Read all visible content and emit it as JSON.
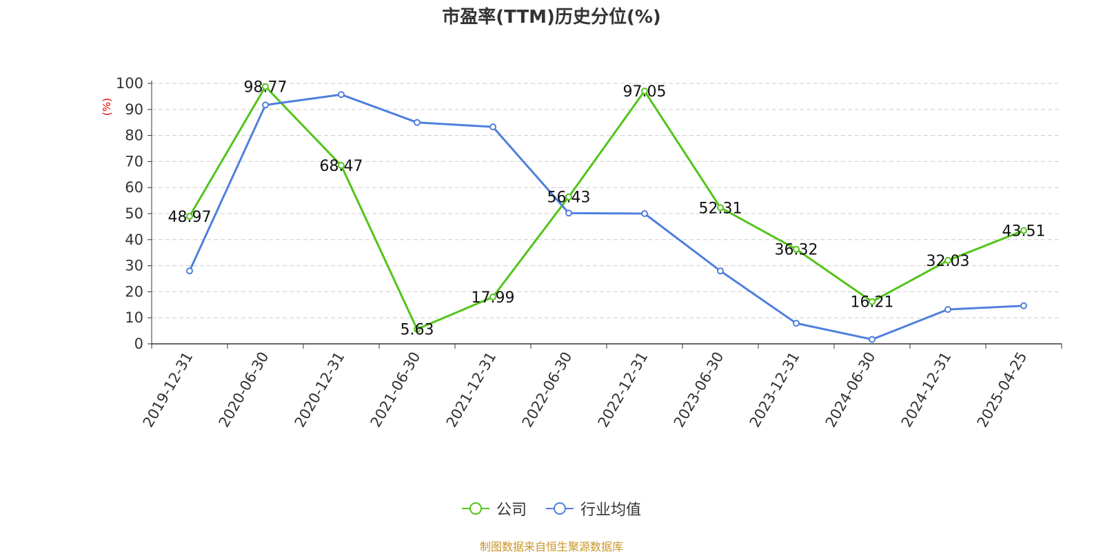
{
  "chart_data": {
    "type": "line",
    "title": "市盈率(TTM)历史分位(%)",
    "ylabel": "(%)",
    "xlabel": "",
    "categories": [
      "2019-12-31",
      "2020-06-30",
      "2020-12-31",
      "2021-06-30",
      "2021-12-31",
      "2022-06-30",
      "2022-12-31",
      "2023-06-30",
      "2023-12-31",
      "2024-06-30",
      "2024-12-31",
      "2025-04-25"
    ],
    "ylim": [
      0,
      100
    ],
    "yticks": [
      0,
      10,
      20,
      30,
      40,
      50,
      60,
      70,
      80,
      90,
      100
    ],
    "grid": true,
    "legend_position": "bottom",
    "series": [
      {
        "name": "公司",
        "color": "#52c41a",
        "show_labels": true,
        "values": [
          48.97,
          98.77,
          68.47,
          5.63,
          17.99,
          56.43,
          97.05,
          52.31,
          36.32,
          16.21,
          32.03,
          43.51
        ],
        "labels": [
          "48.97",
          "98.77",
          "68.47",
          "5.63",
          "17.99",
          "56.43",
          "97.05",
          "52.31",
          "36.32",
          "16.21",
          "32.03",
          "43.51"
        ]
      },
      {
        "name": "行业均值",
        "color": "#4e7fdc",
        "show_labels": false,
        "values": [
          28.0,
          91.7,
          95.7,
          85.0,
          83.3,
          50.2,
          50.0,
          28.0,
          7.9,
          1.7,
          13.2,
          14.6
        ]
      }
    ]
  },
  "source_note": "制图数据来自恒生聚源数据库",
  "colors": {
    "ylabel": "#e00000",
    "source_note": "#c8962a",
    "grid": "#cccccc",
    "axis": "#333333"
  }
}
